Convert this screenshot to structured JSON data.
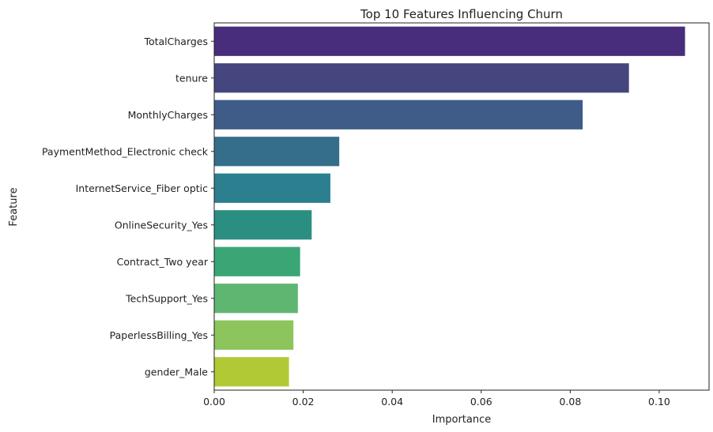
{
  "chart_data": {
    "type": "bar",
    "orientation": "horizontal",
    "title": "Top 10 Features Influencing Churn",
    "xlabel": "Importance",
    "ylabel": "Feature",
    "categories": [
      "TotalCharges",
      "tenure",
      "MonthlyCharges",
      "PaymentMethod_Electronic check",
      "InternetService_Fiber optic",
      "OnlineSecurity_Yes",
      "Contract_Two year",
      "TechSupport_Yes",
      "PaperlessBilling_Yes",
      "gender_Male"
    ],
    "values": [
      0.1058,
      0.0932,
      0.0828,
      0.0281,
      0.0261,
      0.0219,
      0.0193,
      0.0188,
      0.0178,
      0.0168
    ],
    "xlim": [
      0,
      0.1112
    ],
    "xticks": [
      0.0,
      0.02,
      0.04,
      0.06,
      0.08,
      0.1
    ],
    "xtick_labels": [
      "0.00",
      "0.02",
      "0.04",
      "0.06",
      "0.08",
      "0.10"
    ],
    "grid": false,
    "legend": "none",
    "colors": [
      "#472d7b",
      "#46467e",
      "#3f5b88",
      "#356e8a",
      "#2b7f8e",
      "#2a8f81",
      "#3aa676",
      "#5fb671",
      "#8bc55c",
      "#b2c936"
    ]
  }
}
